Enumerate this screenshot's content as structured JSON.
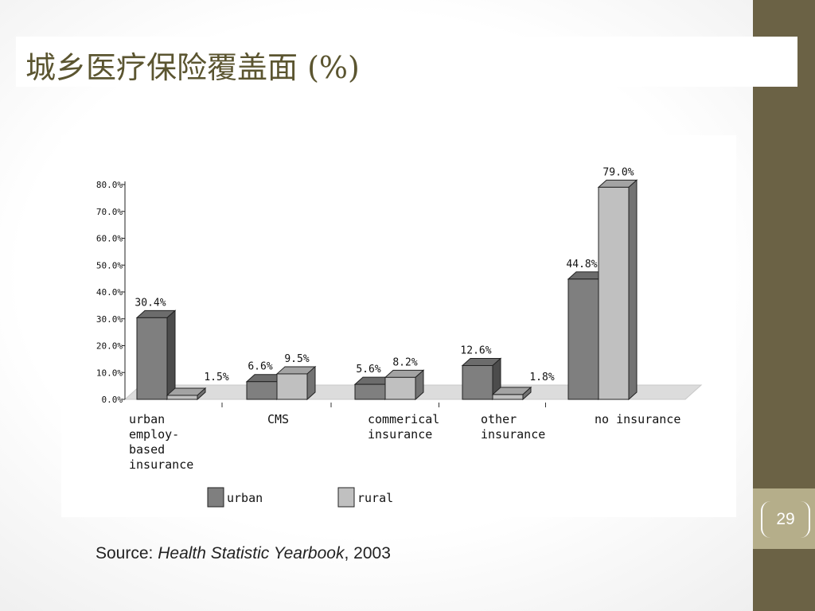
{
  "slide": {
    "title": "城乡医疗保险覆盖面 (%)",
    "number": "29",
    "source_prefix": "Source: ",
    "source_title": "Health Statistic Yearbook",
    "source_suffix": ", 2003"
  },
  "colors": {
    "urban": "#7f7f7f",
    "rural": "#c0c0c0",
    "sidebar": "#6b6245",
    "title": "#5b5530"
  },
  "chart_data": {
    "type": "bar",
    "title": "",
    "categories": [
      "urban employ- based insurance",
      "CMS",
      "commerical insurance",
      "other insurance",
      "no insurance"
    ],
    "category_lines": [
      [
        "urban",
        "employ-",
        "based",
        "insurance"
      ],
      [
        "CMS"
      ],
      [
        "commerical",
        "insurance"
      ],
      [
        "other",
        "insurance"
      ],
      [
        "no insurance"
      ]
    ],
    "series": [
      {
        "name": "urban",
        "values": [
          30.4,
          6.6,
          5.6,
          12.6,
          44.8
        ],
        "labels": [
          "30.4%",
          "6.6%",
          "5.6%",
          "12.6%",
          "44.8%"
        ]
      },
      {
        "name": "rural",
        "values": [
          1.5,
          9.5,
          8.2,
          1.8,
          79.0
        ],
        "labels": [
          "1.5%",
          "9.5%",
          "8.2%",
          "1.8%",
          "79.0%"
        ]
      }
    ],
    "ylim": [
      0,
      80
    ],
    "yticks": [
      "0.0%",
      "10.0%",
      "20.0%",
      "30.0%",
      "40.0%",
      "50.0%",
      "60.0%",
      "70.0%",
      "80.0%"
    ],
    "xlabel": "",
    "ylabel": "",
    "legend": "bottom",
    "grid": false,
    "three_d": true
  }
}
